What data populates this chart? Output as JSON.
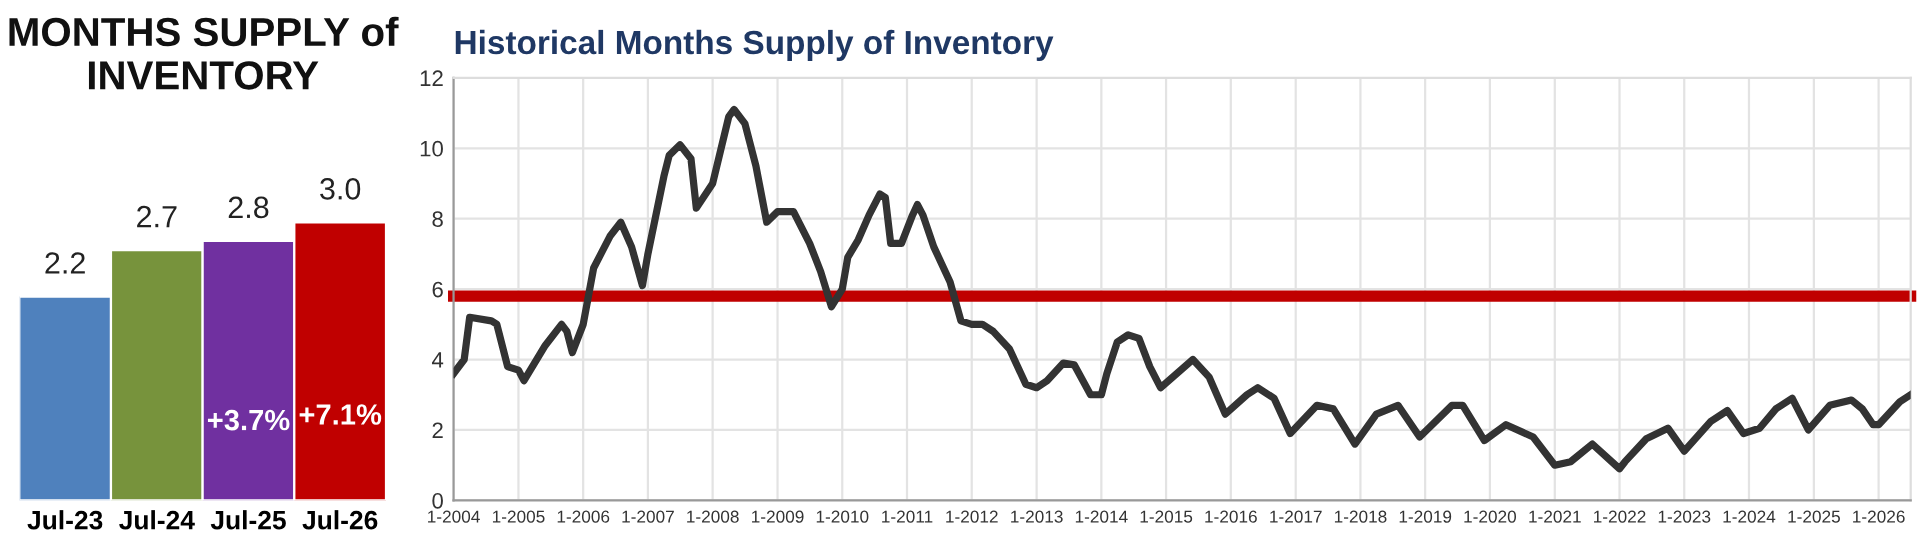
{
  "chart_data": [
    {
      "type": "bar",
      "title": "MONTHS SUPPLY of\nINVENTORY",
      "categories": [
        "Jul-23",
        "Jul-24",
        "Jul-25",
        "Jul-26"
      ],
      "values": [
        2.2,
        2.7,
        2.8,
        3.0
      ],
      "colors": [
        "#4f81bd",
        "#77933c",
        "#7030a0",
        "#c00000"
      ],
      "value_labels": [
        "2.2",
        "2.7",
        "2.8",
        "3.0"
      ],
      "annotations": [
        "+3.7%",
        "+7.1%"
      ]
    },
    {
      "type": "line",
      "title": "Historical Months Supply of Inventory",
      "grid": true,
      "x": [
        "2004-01",
        "2004-03",
        "2004-04",
        "2004-08",
        "2004-09",
        "2004-11",
        "2005-01",
        "2005-02",
        "2005-06",
        "2005-09",
        "2005-10",
        "2005-11",
        "2006-01",
        "2006-03",
        "2006-06",
        "2006-08",
        "2006-10",
        "2006-12",
        "2007-01",
        "2007-04",
        "2007-05",
        "2007-07",
        "2007-09",
        "2007-10",
        "2008-01",
        "2008-04",
        "2008-05",
        "2008-07",
        "2008-09",
        "2008-11",
        "2009-01",
        "2009-04",
        "2009-07",
        "2009-09",
        "2009-11",
        "2010-01",
        "2010-02",
        "2010-04",
        "2010-06",
        "2010-08",
        "2010-09",
        "2010-10",
        "2010-12",
        "2011-02",
        "2011-03",
        "2011-04",
        "2011-06",
        "2011-09",
        "2011-11",
        "2012-01",
        "2012-03",
        "2012-05",
        "2012-08",
        "2012-11",
        "2013-01",
        "2013-03",
        "2013-06",
        "2013-08",
        "2013-11",
        "2014-01",
        "2014-02",
        "2014-04",
        "2014-06",
        "2014-08",
        "2014-10",
        "2014-12",
        "2015-06",
        "2015-09",
        "2015-12",
        "2016-04",
        "2016-06",
        "2016-09",
        "2016-12",
        "2017-05",
        "2017-08",
        "2017-12",
        "2018-04",
        "2018-08",
        "2018-12",
        "2019-06",
        "2019-08",
        "2019-12",
        "2020-04",
        "2020-09",
        "2021-01",
        "2021-04",
        "2021-08",
        "2022-01",
        "2022-02",
        "2022-06",
        "2022-10",
        "2023-01",
        "2023-06",
        "2023-09",
        "2023-12",
        "2024-03",
        "2024-06",
        "2024-09",
        "2024-12",
        "2025-04",
        "2025-08",
        "2025-10",
        "2025-12",
        "2026-01",
        "2026-05",
        "2026-07"
      ],
      "series": [
        {
          "color": "#333333",
          "values": [
            3.6,
            4.0,
            5.2,
            5.1,
            5.0,
            3.8,
            3.7,
            3.4,
            4.4,
            5.0,
            4.8,
            4.2,
            5.0,
            6.6,
            7.5,
            7.9,
            7.2,
            6.1,
            7.0,
            9.2,
            9.8,
            10.1,
            9.7,
            8.3,
            9.0,
            10.9,
            11.1,
            10.7,
            9.5,
            7.9,
            8.2,
            8.2,
            7.3,
            6.5,
            5.5,
            6.0,
            6.9,
            7.4,
            8.1,
            8.7,
            8.6,
            7.3,
            7.3,
            8.1,
            8.4,
            8.1,
            7.2,
            6.2,
            5.1,
            5.0,
            5.0,
            4.8,
            4.3,
            3.3,
            3.2,
            3.4,
            3.9,
            3.85,
            3.0,
            3.0,
            3.6,
            4.5,
            4.7,
            4.6,
            3.8,
            3.2,
            4.0,
            3.5,
            2.45,
            3.0,
            3.2,
            2.9,
            1.9,
            2.7,
            2.6,
            1.6,
            2.45,
            2.7,
            1.8,
            2.7,
            2.7,
            1.7,
            2.15,
            1.8,
            1.0,
            1.1,
            1.6,
            0.9,
            1.1,
            1.75,
            2.05,
            1.4,
            2.25,
            2.55,
            1.9,
            2.05,
            2.6,
            2.9,
            2.0,
            2.7,
            2.85,
            2.6,
            2.15,
            2.15,
            2.8,
            3.0
          ]
        }
      ],
      "ref_lines": [
        {
          "axis": "y",
          "value": 5.8,
          "color": "#c00000"
        }
      ],
      "xlim": [
        "2004-01",
        "2026-07"
      ],
      "xticks": [
        {
          "value": "2004-01",
          "label": "1-2004"
        },
        {
          "value": "2005-01",
          "label": "1-2005"
        },
        {
          "value": "2006-01",
          "label": "1-2006"
        },
        {
          "value": "2007-01",
          "label": "1-2007"
        },
        {
          "value": "2008-01",
          "label": "1-2008"
        },
        {
          "value": "2009-01",
          "label": "1-2009"
        },
        {
          "value": "2010-01",
          "label": "1-2010"
        },
        {
          "value": "2011-01",
          "label": "1-2011"
        },
        {
          "value": "2012-01",
          "label": "1-2012"
        },
        {
          "value": "2013-01",
          "label": "1-2013"
        },
        {
          "value": "2014-01",
          "label": "1-2014"
        },
        {
          "value": "2015-01",
          "label": "1-2015"
        },
        {
          "value": "2016-01",
          "label": "1-2016"
        },
        {
          "value": "2017-01",
          "label": "1-2017"
        },
        {
          "value": "2018-01",
          "label": "1-2018"
        },
        {
          "value": "2019-01",
          "label": "1-2019"
        },
        {
          "value": "2020-01",
          "label": "1-2020"
        },
        {
          "value": "2021-01",
          "label": "1-2021"
        },
        {
          "value": "2022-01",
          "label": "1-2022"
        },
        {
          "value": "2023-01",
          "label": "1-2023"
        },
        {
          "value": "2024-01",
          "label": "1-2024"
        },
        {
          "value": "2025-01",
          "label": "1-2025"
        },
        {
          "value": "2026-01",
          "label": "1-2026"
        }
      ],
      "ylim": [
        0,
        12
      ],
      "yticks": [
        0,
        2,
        4,
        6,
        8,
        10,
        12
      ]
    }
  ]
}
